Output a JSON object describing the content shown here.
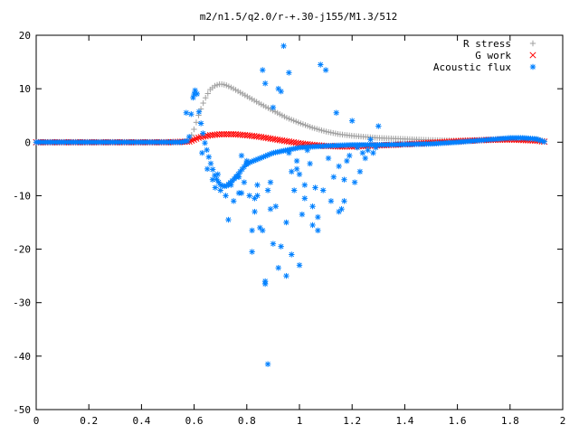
{
  "chart_data": {
    "type": "scatter",
    "title": "m2/n1.5/q2.0/r-+.30-j155/M1.3/512",
    "xlabel": "",
    "ylabel": "",
    "xlim": [
      0,
      2
    ],
    "ylim": [
      -50,
      20
    ],
    "xticks": [
      0,
      0.2,
      0.4,
      0.6,
      0.8,
      1,
      1.2,
      1.4,
      1.6,
      1.8,
      2
    ],
    "xtick_labels": [
      "0",
      "0.2",
      "0.4",
      "0.6",
      "0.8",
      "1",
      "1.2",
      "1.4",
      "1.6",
      "1.8",
      "2"
    ],
    "yticks": [
      -50,
      -40,
      -30,
      -20,
      -10,
      0,
      10,
      20
    ],
    "ytick_labels": [
      "-50",
      "-40",
      "-30",
      "-20",
      "-10",
      "0",
      "10",
      "20"
    ],
    "grid": false,
    "legend_position": "top-right",
    "series": [
      {
        "name": "R stress",
        "marker": "plus",
        "color": "#a0a0a0",
        "x": [
          0.0,
          0.1,
          0.2,
          0.3,
          0.4,
          0.5,
          0.58,
          0.6,
          0.62,
          0.64,
          0.66,
          0.68,
          0.7,
          0.72,
          0.75,
          0.8,
          0.85,
          0.9,
          0.95,
          1.0,
          1.05,
          1.1,
          1.15,
          1.2,
          1.25,
          1.3,
          1.4,
          1.5,
          1.6,
          1.7,
          1.8,
          1.85,
          1.9,
          1.93
        ],
        "y": [
          0,
          0,
          0,
          0,
          0,
          0,
          0.1,
          2.5,
          5.5,
          8.0,
          9.8,
          10.6,
          10.9,
          10.7,
          10.0,
          8.6,
          7.2,
          5.9,
          4.6,
          3.6,
          2.7,
          2.0,
          1.5,
          1.2,
          1.0,
          0.8,
          0.6,
          0.4,
          0.3,
          0.4,
          0.6,
          0.6,
          0.5,
          0.2
        ]
      },
      {
        "name": "G work",
        "marker": "cross",
        "color": "#ff0000",
        "x": [
          0.0,
          0.1,
          0.2,
          0.3,
          0.4,
          0.5,
          0.58,
          0.6,
          0.62,
          0.64,
          0.66,
          0.68,
          0.7,
          0.75,
          0.8,
          0.85,
          0.9,
          0.95,
          1.0,
          1.05,
          1.1,
          1.15,
          1.2,
          1.25,
          1.3,
          1.4,
          1.5,
          1.6,
          1.7,
          1.8,
          1.85,
          1.9,
          1.93
        ],
        "y": [
          0,
          0,
          0,
          0,
          0,
          0,
          0.1,
          0.5,
          0.9,
          1.1,
          1.3,
          1.4,
          1.5,
          1.5,
          1.3,
          1.0,
          0.6,
          0.2,
          -0.2,
          -0.5,
          -0.7,
          -0.8,
          -0.8,
          -0.7,
          -0.6,
          -0.4,
          -0.1,
          0.2,
          0.4,
          0.5,
          0.4,
          0.3,
          0.1
        ]
      },
      {
        "name": "Acoustic flux",
        "marker": "star",
        "color": "#0080ff",
        "line": {
          "x": [
            0.0,
            0.1,
            0.2,
            0.3,
            0.4,
            0.5,
            0.55,
            0.58,
            0.59,
            0.6,
            0.61,
            0.62,
            0.64,
            0.66,
            0.68,
            0.7,
            0.72,
            0.75,
            0.8,
            0.9,
            1.0,
            1.1,
            1.2,
            1.3,
            1.4,
            1.5,
            1.6,
            1.7,
            1.8,
            1.85,
            1.9,
            1.93
          ],
          "y": [
            0,
            0,
            0,
            0,
            0,
            0,
            0,
            0.3,
            6.0,
            9.8,
            9.5,
            5.0,
            0.0,
            -3.5,
            -6.5,
            -8.0,
            -8.3,
            -7.0,
            -4.0,
            -2.0,
            -1.0,
            -0.7,
            -0.5,
            -0.5,
            -0.4,
            -0.3,
            0.0,
            0.4,
            0.8,
            0.8,
            0.6,
            0.1
          ]
        },
        "scatter_x": [
          0.57,
          0.6,
          0.63,
          0.65,
          0.67,
          0.68,
          0.69,
          0.7,
          0.72,
          0.73,
          0.74,
          0.75,
          0.76,
          0.77,
          0.78,
          0.79,
          0.8,
          0.81,
          0.82,
          0.83,
          0.84,
          0.85,
          0.86,
          0.87,
          0.87,
          0.88,
          0.89,
          0.9,
          0.9,
          0.91,
          0.92,
          0.93,
          0.94,
          0.95,
          0.96,
          0.97,
          0.98,
          0.99,
          1.0,
          1.01,
          1.02,
          1.03,
          1.04,
          1.05,
          1.06,
          1.07,
          1.08,
          1.09,
          1.1,
          1.11,
          1.12,
          1.13,
          1.14,
          1.15,
          1.16,
          1.17,
          1.18,
          1.19,
          1.2,
          1.21,
          1.22,
          1.23,
          1.24,
          1.25,
          1.26,
          1.27,
          1.28,
          1.29,
          1.3,
          0.87,
          0.88,
          0.86,
          0.84,
          0.95,
          0.93,
          0.97,
          0.89,
          0.92,
          1.07,
          1.05,
          1.17,
          1.15,
          0.82,
          0.8,
          0.83,
          1.0,
          1.02,
          0.99,
          0.96,
          0.78,
          0.77
        ],
        "scatter_y": [
          5.5,
          9.0,
          -2.0,
          -5.0,
          -7.0,
          -8.5,
          -6.0,
          -9.0,
          -10.0,
          -14.5,
          -8.0,
          -11.0,
          -6.5,
          -9.5,
          -2.5,
          -7.5,
          -4.0,
          -10.0,
          -20.5,
          -13.0,
          -8.0,
          -16.0,
          13.5,
          -26.0,
          11.0,
          -9.0,
          -7.5,
          6.5,
          -19.0,
          -12.0,
          -23.5,
          9.5,
          18.0,
          -15.0,
          13.0,
          -5.5,
          -9.0,
          -3.5,
          -6.0,
          -13.5,
          -10.5,
          -1.5,
          -4.0,
          -12.0,
          -8.5,
          -16.5,
          14.5,
          -9.0,
          13.5,
          -3.0,
          -11.0,
          -6.5,
          5.5,
          -4.5,
          -12.5,
          -7.0,
          -3.5,
          -2.5,
          4.0,
          -7.5,
          -1.0,
          -5.5,
          -2.0,
          -3.0,
          -1.5,
          0.5,
          -2.0,
          -1.0,
          3.0,
          -26.5,
          -41.5,
          -16.5,
          -10.0,
          -25.0,
          -19.5,
          -21.0,
          -12.5,
          10.0,
          -14.0,
          -15.5,
          -11.0,
          -13.0,
          -16.5,
          -3.5,
          -10.5,
          -23.0,
          -8.0,
          -5.0,
          -2.0,
          -9.5,
          -6.5
        ]
      }
    ]
  }
}
